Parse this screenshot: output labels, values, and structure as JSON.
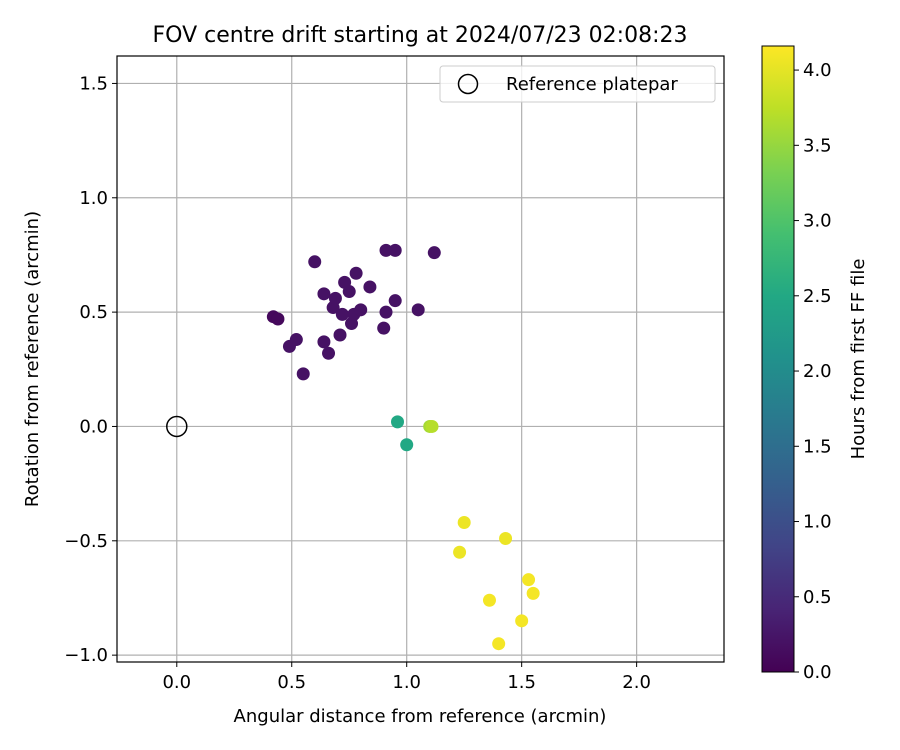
{
  "chart_data": {
    "type": "scatter",
    "title": "FOV centre drift starting at 2024/07/23 02:08:23",
    "xlabel": "Angular distance from reference (arcmin)",
    "ylabel": "Rotation from reference (arcmin)",
    "xlim": [
      -0.26,
      2.38
    ],
    "ylim": [
      -1.03,
      1.62
    ],
    "x_ticks": [
      0.0,
      0.5,
      1.0,
      1.5,
      2.0
    ],
    "x_tick_labels": [
      "0.0",
      "0.5",
      "1.0",
      "1.5",
      "2.0"
    ],
    "y_ticks": [
      -1.0,
      -0.5,
      0.0,
      0.5,
      1.0,
      1.5
    ],
    "y_tick_labels": [
      "−1.0",
      "−0.5",
      "0.0",
      "0.5",
      "1.0",
      "1.5"
    ],
    "grid": true,
    "legend": {
      "placement": "top-right",
      "entries": [
        "Reference platepar"
      ]
    },
    "reference_point": {
      "x": 0.0,
      "y": 0.0
    },
    "colorbar": {
      "label": "Hours from first FF file",
      "colormap": "viridis",
      "range": [
        0.0,
        4.16
      ],
      "ticks": [
        0.0,
        0.5,
        1.0,
        1.5,
        2.0,
        2.5,
        3.0,
        3.5,
        4.0
      ],
      "tick_labels": [
        "0.0",
        "0.5",
        "1.0",
        "1.5",
        "2.0",
        "2.5",
        "3.0",
        "3.5",
        "4.0"
      ]
    },
    "points": [
      {
        "x": 0.42,
        "y": 0.48,
        "hours": 0.1
      },
      {
        "x": 0.44,
        "y": 0.47,
        "hours": 0.1
      },
      {
        "x": 0.49,
        "y": 0.35,
        "hours": 0.2
      },
      {
        "x": 0.52,
        "y": 0.38,
        "hours": 0.2
      },
      {
        "x": 0.55,
        "y": 0.23,
        "hours": 0.2
      },
      {
        "x": 0.6,
        "y": 0.72,
        "hours": 0.2
      },
      {
        "x": 0.64,
        "y": 0.58,
        "hours": 0.2
      },
      {
        "x": 0.64,
        "y": 0.37,
        "hours": 0.2
      },
      {
        "x": 0.66,
        "y": 0.32,
        "hours": 0.2
      },
      {
        "x": 0.68,
        "y": 0.52,
        "hours": 0.2
      },
      {
        "x": 0.69,
        "y": 0.56,
        "hours": 0.2
      },
      {
        "x": 0.71,
        "y": 0.4,
        "hours": 0.2
      },
      {
        "x": 0.72,
        "y": 0.49,
        "hours": 0.2
      },
      {
        "x": 0.73,
        "y": 0.63,
        "hours": 0.2
      },
      {
        "x": 0.75,
        "y": 0.59,
        "hours": 0.2
      },
      {
        "x": 0.76,
        "y": 0.45,
        "hours": 0.2
      },
      {
        "x": 0.77,
        "y": 0.49,
        "hours": 0.2
      },
      {
        "x": 0.78,
        "y": 0.67,
        "hours": 0.2
      },
      {
        "x": 0.8,
        "y": 0.51,
        "hours": 0.2
      },
      {
        "x": 0.84,
        "y": 0.61,
        "hours": 0.2
      },
      {
        "x": 0.9,
        "y": 0.43,
        "hours": 0.2
      },
      {
        "x": 0.91,
        "y": 0.5,
        "hours": 0.2
      },
      {
        "x": 0.91,
        "y": 0.77,
        "hours": 0.2
      },
      {
        "x": 0.95,
        "y": 0.77,
        "hours": 0.2
      },
      {
        "x": 0.95,
        "y": 0.55,
        "hours": 0.2
      },
      {
        "x": 1.05,
        "y": 0.51,
        "hours": 0.2
      },
      {
        "x": 1.12,
        "y": 0.76,
        "hours": 0.2
      },
      {
        "x": 0.96,
        "y": 0.02,
        "hours": 2.5
      },
      {
        "x": 1.0,
        "y": -0.08,
        "hours": 2.5
      },
      {
        "x": 1.1,
        "y": 0.0,
        "hours": 3.6
      },
      {
        "x": 1.11,
        "y": 0.0,
        "hours": 3.7
      },
      {
        "x": 1.25,
        "y": -0.42,
        "hours": 4.05
      },
      {
        "x": 1.43,
        "y": -0.49,
        "hours": 4.05
      },
      {
        "x": 1.23,
        "y": -0.55,
        "hours": 4.05
      },
      {
        "x": 1.53,
        "y": -0.67,
        "hours": 4.1
      },
      {
        "x": 1.55,
        "y": -0.73,
        "hours": 4.1
      },
      {
        "x": 1.36,
        "y": -0.76,
        "hours": 4.1
      },
      {
        "x": 1.5,
        "y": -0.85,
        "hours": 4.1
      },
      {
        "x": 1.4,
        "y": -0.95,
        "hours": 4.1
      }
    ]
  }
}
